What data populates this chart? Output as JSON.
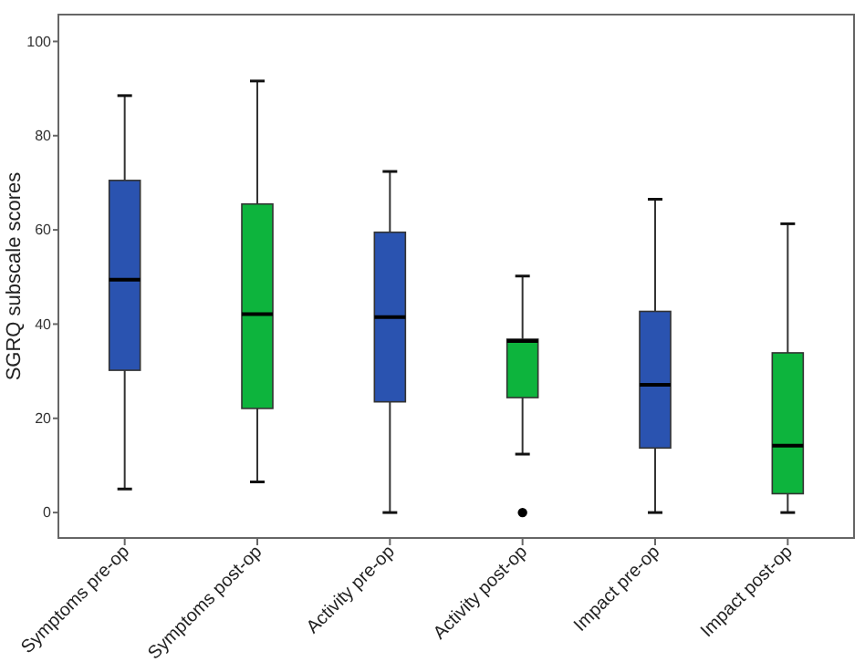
{
  "chart_data": {
    "type": "box",
    "ylabel": "SGRQ subscale scores",
    "categories": [
      "Symptoms pre-op",
      "Symptoms post-op",
      "Activity pre-op",
      "Activity post-op",
      "Impact pre-op",
      "Impact post-op"
    ],
    "colors": [
      "#2a53b0",
      "#0db43d",
      "#2a53b0",
      "#0db43d",
      "#2a53b0",
      "#0db43d"
    ],
    "boxes": [
      {
        "low": 5,
        "q1": 30.2,
        "median": 49.4,
        "q3": 70.5,
        "high": 88.5
      },
      {
        "low": 6.5,
        "q1": 22.1,
        "median": 42.1,
        "q3": 65.5,
        "high": 91.6
      },
      {
        "low": 0,
        "q1": 23.5,
        "median": 41.5,
        "q3": 59.5,
        "high": 72.4
      },
      {
        "low": 12.4,
        "q1": 24.4,
        "median": 36.4,
        "q3": 36.8,
        "high": 50.2,
        "outliers": [
          0
        ]
      },
      {
        "low": 0,
        "q1": 13.7,
        "median": 27.1,
        "q3": 42.7,
        "high": 66.5
      },
      {
        "low": 0,
        "q1": 4,
        "median": 14.2,
        "q3": 33.9,
        "high": 61.3
      }
    ],
    "ylim": [
      -5.4,
      105.7
    ],
    "yticks": [
      0,
      20,
      40,
      60,
      80,
      100
    ]
  }
}
